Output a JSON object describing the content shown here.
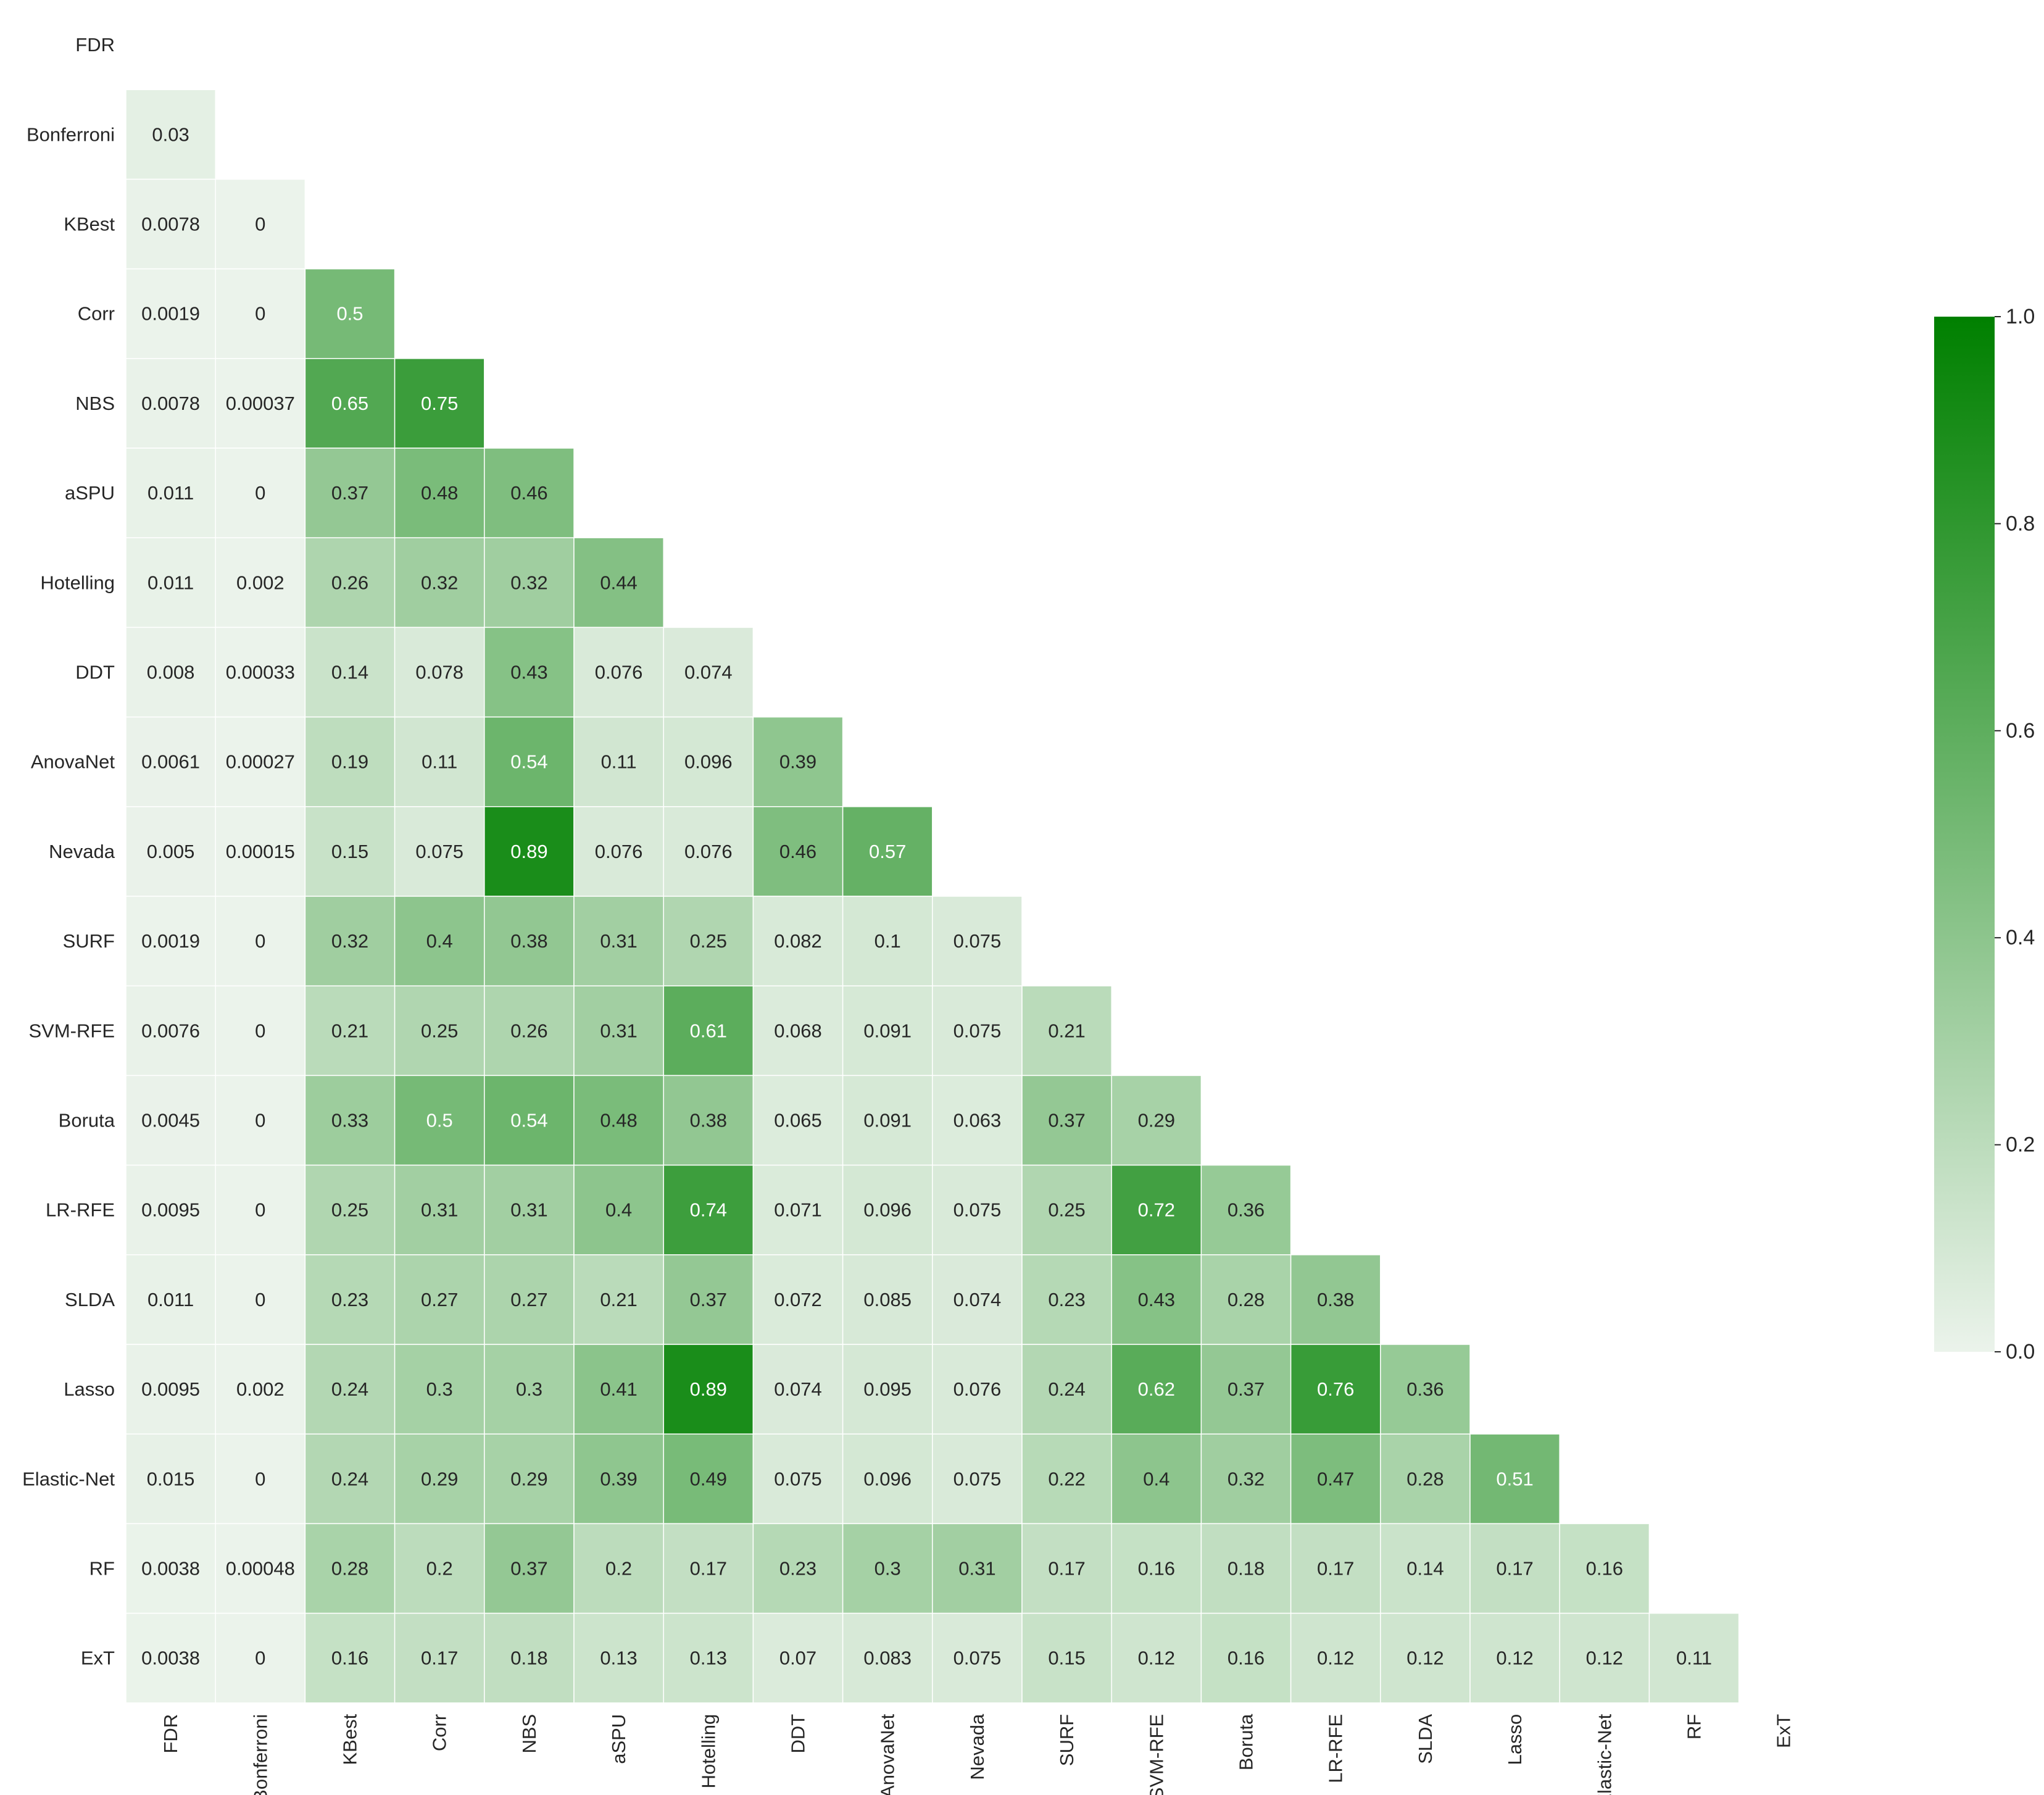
{
  "chart_data": {
    "type": "heatmap",
    "title": "",
    "xlabel": "",
    "ylabel": "",
    "labels": [
      "FDR",
      "Bonferroni",
      "KBest",
      "Corr",
      "NBS",
      "aSPU",
      "Hotelling",
      "DDT",
      "AnovaNet",
      "Nevada",
      "SURF",
      "SVM-RFE",
      "Boruta",
      "LR-RFE",
      "SLDA",
      "Lasso",
      "Elastic-Net",
      "RF",
      "ExT"
    ],
    "lower_triangle_values": [
      [],
      [
        "0.03"
      ],
      [
        "0.0078",
        "0"
      ],
      [
        "0.0019",
        "0",
        "0.5"
      ],
      [
        "0.0078",
        "0.00037",
        "0.65",
        "0.75"
      ],
      [
        "0.011",
        "0",
        "0.37",
        "0.48",
        "0.46"
      ],
      [
        "0.011",
        "0.002",
        "0.26",
        "0.32",
        "0.32",
        "0.44"
      ],
      [
        "0.008",
        "0.00033",
        "0.14",
        "0.078",
        "0.43",
        "0.076",
        "0.074"
      ],
      [
        "0.0061",
        "0.00027",
        "0.19",
        "0.11",
        "0.54",
        "0.11",
        "0.096",
        "0.39"
      ],
      [
        "0.005",
        "0.00015",
        "0.15",
        "0.075",
        "0.89",
        "0.076",
        "0.076",
        "0.46",
        "0.57"
      ],
      [
        "0.0019",
        "0",
        "0.32",
        "0.4",
        "0.38",
        "0.31",
        "0.25",
        "0.082",
        "0.1",
        "0.075"
      ],
      [
        "0.0076",
        "0",
        "0.21",
        "0.25",
        "0.26",
        "0.31",
        "0.61",
        "0.068",
        "0.091",
        "0.075",
        "0.21"
      ],
      [
        "0.0045",
        "0",
        "0.33",
        "0.5",
        "0.54",
        "0.48",
        "0.38",
        "0.065",
        "0.091",
        "0.063",
        "0.37",
        "0.29"
      ],
      [
        "0.0095",
        "0",
        "0.25",
        "0.31",
        "0.31",
        "0.4",
        "0.74",
        "0.071",
        "0.096",
        "0.075",
        "0.25",
        "0.72",
        "0.36"
      ],
      [
        "0.011",
        "0",
        "0.23",
        "0.27",
        "0.27",
        "0.21",
        "0.37",
        "0.072",
        "0.085",
        "0.074",
        "0.23",
        "0.43",
        "0.28",
        "0.38"
      ],
      [
        "0.0095",
        "0.002",
        "0.24",
        "0.3",
        "0.3",
        "0.41",
        "0.89",
        "0.074",
        "0.095",
        "0.076",
        "0.24",
        "0.62",
        "0.37",
        "0.76",
        "0.36"
      ],
      [
        "0.015",
        "0",
        "0.24",
        "0.29",
        "0.29",
        "0.39",
        "0.49",
        "0.075",
        "0.096",
        "0.075",
        "0.22",
        "0.4",
        "0.32",
        "0.47",
        "0.28",
        "0.51"
      ],
      [
        "0.0038",
        "0.00048",
        "0.28",
        "0.2",
        "0.37",
        "0.2",
        "0.17",
        "0.23",
        "0.3",
        "0.31",
        "0.17",
        "0.16",
        "0.18",
        "0.17",
        "0.14",
        "0.17",
        "0.16"
      ],
      [
        "0.0038",
        "0",
        "0.16",
        "0.17",
        "0.18",
        "0.13",
        "0.13",
        "0.07",
        "0.083",
        "0.075",
        "0.15",
        "0.12",
        "0.16",
        "0.12",
        "0.12",
        "0.12",
        "0.12",
        "0.11"
      ]
    ],
    "colorbar": {
      "range": [
        0.0,
        1.0
      ],
      "ticks": [
        "0.0",
        "0.2",
        "0.4",
        "0.6",
        "0.8",
        "1.0"
      ],
      "color_low": "#ebf3eb",
      "color_high": "#008000"
    },
    "grid": true
  }
}
